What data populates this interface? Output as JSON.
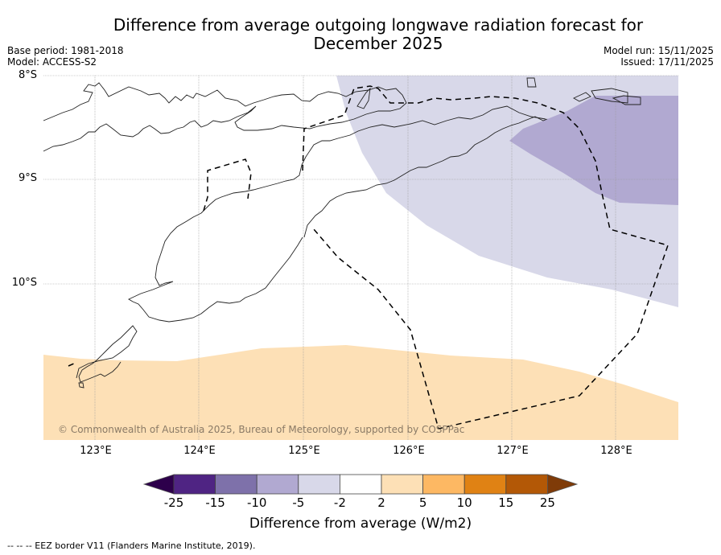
{
  "title_line1": "Difference from average outgoing longwave radiation forecast for",
  "title_line2": "December 2025",
  "meta": {
    "base_period": "Base period: 1981-2018",
    "model": "Model: ACCESS-S2",
    "model_run": "Model run: 15/11/2025",
    "issued": "Issued: 17/11/2025"
  },
  "map": {
    "lat_labels": [
      "8°S",
      "9°S",
      "10°S"
    ],
    "lon_labels": [
      "123°E",
      "124°E",
      "125°E",
      "126°E",
      "127°E",
      "128°E"
    ],
    "extent": {
      "lon_min": 122.5,
      "lon_max": 128.6,
      "lat_min": -11.5,
      "lat_max": -8.0
    },
    "copyright": "© Commonwealth of Australia 2025, Bureau of Meteorology, supported by COSPPac",
    "regions": [
      {
        "name": "anomaly -5 to -2",
        "color": "#d8d8e9"
      },
      {
        "name": "anomaly -10 to -5",
        "color": "#b1a9d1"
      },
      {
        "name": "anomaly 2 to 5",
        "color": "#fde0b6"
      }
    ],
    "grid_color": "#999999"
  },
  "colorbar": {
    "ticks": [
      "-25",
      "-15",
      "-10",
      "-5",
      "-2",
      "2",
      "5",
      "10",
      "15",
      "25"
    ],
    "colors": [
      "#4f2483",
      "#7e71aa",
      "#b1a9d1",
      "#d8d8e9",
      "#ffffff",
      "#fde0b6",
      "#fdb863",
      "#e08214",
      "#b35806"
    ],
    "under_color": "#2d004b",
    "over_color": "#7f3b08",
    "label": "Difference from average (W/m2)"
  },
  "footnote": "--  --  -- EEZ border V11 (Flanders Marine Institute, 2019)."
}
